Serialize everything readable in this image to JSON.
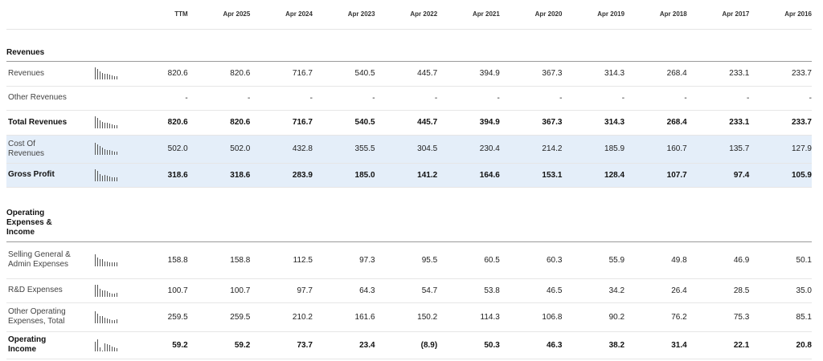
{
  "columns": [
    "TTM",
    "Apr 2025",
    "Apr 2024",
    "Apr 2023",
    "Apr 2022",
    "Apr 2021",
    "Apr 2020",
    "Apr 2019",
    "Apr 2018",
    "Apr 2017",
    "Apr 2016"
  ],
  "sections": {
    "revenues_title": "Revenues",
    "opex_title": "Operating Expenses & Income"
  },
  "rows": [
    {
      "label": "Revenues",
      "values": [
        "820.6",
        "820.6",
        "716.7",
        "540.5",
        "445.7",
        "394.9",
        "367.3",
        "314.3",
        "268.4",
        "233.1",
        "233.7"
      ]
    },
    {
      "label": "Other Revenues",
      "values": [
        "-",
        "-",
        "-",
        "-",
        "-",
        "-",
        "-",
        "-",
        "-",
        "-",
        "-"
      ]
    },
    {
      "label": "Total Revenues",
      "values": [
        "820.6",
        "820.6",
        "716.7",
        "540.5",
        "445.7",
        "394.9",
        "367.3",
        "314.3",
        "268.4",
        "233.1",
        "233.7"
      ]
    },
    {
      "label": "Cost Of Revenues",
      "values": [
        "502.0",
        "502.0",
        "432.8",
        "355.5",
        "304.5",
        "230.4",
        "214.2",
        "185.9",
        "160.7",
        "135.7",
        "127.9"
      ]
    },
    {
      "label": "Gross Profit",
      "values": [
        "318.6",
        "318.6",
        "283.9",
        "185.0",
        "141.2",
        "164.6",
        "153.1",
        "128.4",
        "107.7",
        "97.4",
        "105.9"
      ]
    },
    {
      "label": "Selling General & Admin Expenses",
      "values": [
        "158.8",
        "158.8",
        "112.5",
        "97.3",
        "95.5",
        "60.5",
        "60.3",
        "55.9",
        "49.8",
        "46.9",
        "50.1"
      ]
    },
    {
      "label": "R&D Expenses",
      "values": [
        "100.7",
        "100.7",
        "97.7",
        "64.3",
        "54.7",
        "53.8",
        "46.5",
        "34.2",
        "26.4",
        "28.5",
        "35.0"
      ]
    },
    {
      "label": "Other Operating Expenses, Total",
      "values": [
        "259.5",
        "259.5",
        "210.2",
        "161.6",
        "150.2",
        "114.3",
        "106.8",
        "90.2",
        "76.2",
        "75.3",
        "85.1"
      ]
    },
    {
      "label": "Operating Income",
      "values": [
        "59.2",
        "59.2",
        "73.7",
        "23.4",
        "(8.9)",
        "50.3",
        "46.3",
        "38.2",
        "31.4",
        "22.1",
        "20.8"
      ]
    }
  ],
  "sparklines": {
    "revenues": [
      1.0,
      0.87,
      0.66,
      0.54,
      0.48,
      0.45,
      0.38,
      0.33,
      0.28,
      0.28
    ],
    "total_revenues": [
      1.0,
      0.87,
      0.66,
      0.54,
      0.48,
      0.45,
      0.38,
      0.33,
      0.28,
      0.28
    ],
    "cost_of_revenues": [
      1.0,
      0.86,
      0.71,
      0.61,
      0.46,
      0.43,
      0.37,
      0.32,
      0.27,
      0.25
    ],
    "gross_profit": [
      1.0,
      0.89,
      0.58,
      0.44,
      0.52,
      0.48,
      0.4,
      0.34,
      0.31,
      0.33
    ],
    "sga": [
      1.0,
      0.71,
      0.61,
      0.6,
      0.38,
      0.38,
      0.35,
      0.31,
      0.3,
      0.32
    ],
    "rnd": [
      1.0,
      0.97,
      0.64,
      0.54,
      0.53,
      0.46,
      0.34,
      0.26,
      0.28,
      0.35
    ],
    "other_opex": [
      1.0,
      0.81,
      0.62,
      0.58,
      0.44,
      0.41,
      0.35,
      0.29,
      0.29,
      0.33
    ],
    "operating_income": [
      0.8,
      1.0,
      0.32,
      0.0,
      0.68,
      0.63,
      0.52,
      0.43,
      0.3,
      0.28
    ]
  }
}
